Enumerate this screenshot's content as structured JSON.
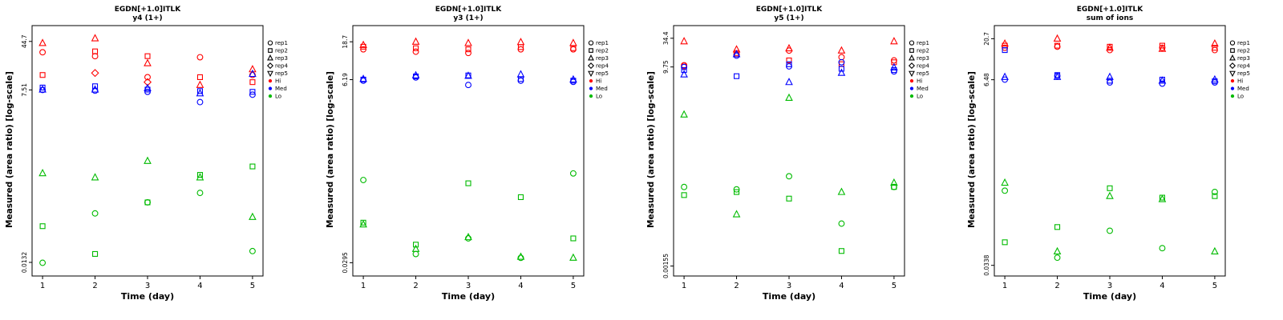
{
  "legend": {
    "reps": [
      {
        "label": "rep1",
        "marker": "circle"
      },
      {
        "label": "rep2",
        "marker": "square"
      },
      {
        "label": "rep3",
        "marker": "triangle-up"
      },
      {
        "label": "rep4",
        "marker": "diamond"
      },
      {
        "label": "rep5",
        "marker": "triangle-down"
      }
    ],
    "groups": [
      {
        "label": "Hi",
        "color": "#ff0000"
      },
      {
        "label": "Med",
        "color": "#0000ff"
      },
      {
        "label": "Lo",
        "color": "#00bb00"
      }
    ]
  },
  "chart_data": [
    {
      "type": "scatter",
      "title": "EGDN[+1.0]ITLK",
      "subtitle": "y4 (1+)",
      "xlabel": "Time (day)",
      "ylabel": "Measured (area ratio) [log-scale]",
      "x_ticks": [
        1,
        2,
        3,
        4,
        5
      ],
      "y_ticks": [
        "44.7",
        "7.51",
        "0.0132"
      ],
      "xlim": [
        0.8,
        5.2
      ],
      "ylim": [
        0.008,
        80
      ],
      "yscale": "log",
      "points": [
        [
          1,
          30,
          "rep1",
          "Hi"
        ],
        [
          1,
          13,
          "rep2",
          "Hi"
        ],
        [
          1,
          42,
          "rep3",
          "Hi"
        ],
        [
          2,
          26,
          "rep1",
          "Hi"
        ],
        [
          2,
          31,
          "rep2",
          "Hi"
        ],
        [
          2,
          50,
          "rep3",
          "Hi"
        ],
        [
          2,
          14,
          "rep4",
          "Hi"
        ],
        [
          3,
          12,
          "rep1",
          "Hi"
        ],
        [
          3,
          26,
          "rep2",
          "Hi"
        ],
        [
          3,
          20,
          "rep3",
          "Hi"
        ],
        [
          3,
          10,
          "rep4",
          "Hi"
        ],
        [
          4,
          25,
          "rep1",
          "Hi"
        ],
        [
          4,
          12,
          "rep2",
          "Hi"
        ],
        [
          4,
          9,
          "rep3",
          "Hi"
        ],
        [
          5,
          13,
          "rep1",
          "Hi"
        ],
        [
          5,
          10,
          "rep2",
          "Hi"
        ],
        [
          5,
          16,
          "rep3",
          "Hi"
        ],
        [
          1,
          7.5,
          "rep1",
          "Med"
        ],
        [
          1,
          8.2,
          "rep2",
          "Med"
        ],
        [
          1,
          7.6,
          "rep3",
          "Med"
        ],
        [
          2,
          7.3,
          "rep1",
          "Med"
        ],
        [
          2,
          8.6,
          "rep2",
          "Med"
        ],
        [
          2,
          7.6,
          "rep3",
          "Med"
        ],
        [
          3,
          7.0,
          "rep1",
          "Med"
        ],
        [
          3,
          7.6,
          "rep2",
          "Med"
        ],
        [
          3,
          8.0,
          "rep3",
          "Med"
        ],
        [
          4,
          4.8,
          "rep1",
          "Med"
        ],
        [
          4,
          7.2,
          "rep2",
          "Med"
        ],
        [
          4,
          6.6,
          "rep3",
          "Med"
        ],
        [
          5,
          6.3,
          "rep1",
          "Med"
        ],
        [
          5,
          7.0,
          "rep2",
          "Med"
        ],
        [
          5,
          13.5,
          "rep3",
          "Med"
        ],
        [
          1,
          0.013,
          "rep1",
          "Lo"
        ],
        [
          1,
          0.05,
          "rep2",
          "Lo"
        ],
        [
          1,
          0.35,
          "rep3",
          "Lo"
        ],
        [
          2,
          0.08,
          "rep1",
          "Lo"
        ],
        [
          2,
          0.018,
          "rep2",
          "Lo"
        ],
        [
          2,
          0.3,
          "rep3",
          "Lo"
        ],
        [
          3,
          0.12,
          "rep1",
          "Lo"
        ],
        [
          3,
          0.12,
          "rep2",
          "Lo"
        ],
        [
          3,
          0.55,
          "rep3",
          "Lo"
        ],
        [
          4,
          0.17,
          "rep1",
          "Lo"
        ],
        [
          4,
          0.33,
          "rep2",
          "Lo"
        ],
        [
          4,
          0.3,
          "rep3",
          "Lo"
        ],
        [
          5,
          0.02,
          "rep1",
          "Lo"
        ],
        [
          5,
          0.45,
          "rep2",
          "Lo"
        ],
        [
          5,
          0.07,
          "rep3",
          "Lo"
        ]
      ]
    },
    {
      "type": "scatter",
      "title": "EGDN[+1.0]ITLK",
      "subtitle": "y3 (1+)",
      "xlabel": "Time (day)",
      "ylabel": "Measured (area ratio) [log-scale]",
      "x_ticks": [
        1,
        2,
        3,
        4,
        5
      ],
      "y_ticks": [
        "18.7",
        "6.19",
        "0.0295"
      ],
      "xlim": [
        0.8,
        5.2
      ],
      "ylim": [
        0.02,
        30
      ],
      "yscale": "log",
      "points": [
        [
          1,
          15,
          "rep1",
          "Hi"
        ],
        [
          1,
          16.2,
          "rep2",
          "Hi"
        ],
        [
          1,
          17,
          "rep3",
          "Hi"
        ],
        [
          2,
          14,
          "rep1",
          "Hi"
        ],
        [
          2,
          15.5,
          "rep2",
          "Hi"
        ],
        [
          2,
          18.7,
          "rep3",
          "Hi"
        ],
        [
          3,
          13.5,
          "rep1",
          "Hi"
        ],
        [
          3,
          15,
          "rep2",
          "Hi"
        ],
        [
          3,
          18,
          "rep3",
          "Hi"
        ],
        [
          4,
          15,
          "rep1",
          "Hi"
        ],
        [
          4,
          16,
          "rep2",
          "Hi"
        ],
        [
          4,
          18.5,
          "rep3",
          "Hi"
        ],
        [
          5,
          15,
          "rep1",
          "Hi"
        ],
        [
          5,
          15.5,
          "rep2",
          "Hi"
        ],
        [
          5,
          18,
          "rep3",
          "Hi"
        ],
        [
          1,
          6.0,
          "rep1",
          "Med"
        ],
        [
          1,
          6.2,
          "rep2",
          "Med"
        ],
        [
          1,
          6.3,
          "rep3",
          "Med"
        ],
        [
          2,
          6.6,
          "rep1",
          "Med"
        ],
        [
          2,
          6.8,
          "rep2",
          "Med"
        ],
        [
          2,
          7.0,
          "rep3",
          "Med"
        ],
        [
          3,
          5.3,
          "rep1",
          "Med"
        ],
        [
          3,
          7.0,
          "rep2",
          "Med"
        ],
        [
          3,
          6.9,
          "rep3",
          "Med"
        ],
        [
          4,
          6.0,
          "rep1",
          "Med"
        ],
        [
          4,
          6.3,
          "rep2",
          "Med"
        ],
        [
          4,
          7.2,
          "rep3",
          "Med"
        ],
        [
          5,
          5.8,
          "rep1",
          "Med"
        ],
        [
          5,
          6.0,
          "rep2",
          "Med"
        ],
        [
          5,
          6.2,
          "rep3",
          "Med"
        ],
        [
          1,
          0.33,
          "rep1",
          "Lo"
        ],
        [
          1,
          0.095,
          "rep2",
          "Lo"
        ],
        [
          1,
          0.09,
          "rep3",
          "Lo"
        ],
        [
          2,
          0.038,
          "rep1",
          "Lo"
        ],
        [
          2,
          0.05,
          "rep2",
          "Lo"
        ],
        [
          2,
          0.044,
          "rep3",
          "Lo"
        ],
        [
          3,
          0.06,
          "rep1",
          "Lo"
        ],
        [
          3,
          0.3,
          "rep2",
          "Lo"
        ],
        [
          3,
          0.062,
          "rep3",
          "Lo"
        ],
        [
          4,
          0.034,
          "rep1",
          "Lo"
        ],
        [
          4,
          0.2,
          "rep2",
          "Lo"
        ],
        [
          4,
          0.035,
          "rep3",
          "Lo"
        ],
        [
          5,
          0.4,
          "rep1",
          "Lo"
        ],
        [
          5,
          0.06,
          "rep2",
          "Lo"
        ],
        [
          5,
          0.034,
          "rep3",
          "Lo"
        ]
      ]
    },
    {
      "type": "scatter",
      "title": "EGDN[+1.0]ITLK",
      "subtitle": "y5 (1+)",
      "xlabel": "Time (day)",
      "ylabel": "Measured (area ratio) [log-scale]",
      "x_ticks": [
        1,
        2,
        3,
        4,
        5
      ],
      "y_ticks": [
        "34.4",
        "9.75",
        "0.00155"
      ],
      "xlim": [
        0.8,
        5.2
      ],
      "ylim": [
        0.001,
        60
      ],
      "yscale": "log",
      "points": [
        [
          1,
          10.5,
          "rep1",
          "Hi"
        ],
        [
          1,
          10,
          "rep2",
          "Hi"
        ],
        [
          1,
          30,
          "rep3",
          "Hi"
        ],
        [
          2,
          17,
          "rep1",
          "Hi"
        ],
        [
          2,
          18,
          "rep2",
          "Hi"
        ],
        [
          2,
          21,
          "rep3",
          "Hi"
        ],
        [
          3,
          20,
          "rep1",
          "Hi"
        ],
        [
          3,
          13,
          "rep2",
          "Hi"
        ],
        [
          3,
          22,
          "rep3",
          "Hi"
        ],
        [
          4,
          15,
          "rep1",
          "Hi"
        ],
        [
          4,
          11,
          "rep2",
          "Hi"
        ],
        [
          4,
          20,
          "rep3",
          "Hi"
        ],
        [
          5,
          13,
          "rep1",
          "Hi"
        ],
        [
          5,
          12,
          "rep2",
          "Hi"
        ],
        [
          5,
          30,
          "rep3",
          "Hi"
        ],
        [
          1,
          9.75,
          "rep1",
          "Med"
        ],
        [
          1,
          8.5,
          "rep2",
          "Med"
        ],
        [
          1,
          7,
          "rep3",
          "Med"
        ],
        [
          2,
          16,
          "rep1",
          "Med"
        ],
        [
          2,
          6.5,
          "rep2",
          "Med"
        ],
        [
          2,
          17,
          "rep3",
          "Med"
        ],
        [
          3,
          10,
          "rep1",
          "Med"
        ],
        [
          3,
          11,
          "rep2",
          "Med"
        ],
        [
          3,
          5,
          "rep3",
          "Med"
        ],
        [
          4,
          12,
          "rep1",
          "Med"
        ],
        [
          4,
          9,
          "rep2",
          "Med"
        ],
        [
          4,
          7.5,
          "rep3",
          "Med"
        ],
        [
          5,
          8,
          "rep1",
          "Med"
        ],
        [
          5,
          8.5,
          "rep2",
          "Med"
        ],
        [
          5,
          9.5,
          "rep3",
          "Med"
        ],
        [
          1,
          0.05,
          "rep1",
          "Lo"
        ],
        [
          1,
          0.035,
          "rep2",
          "Lo"
        ],
        [
          1,
          1.2,
          "rep3",
          "Lo"
        ],
        [
          2,
          0.045,
          "rep1",
          "Lo"
        ],
        [
          2,
          0.04,
          "rep2",
          "Lo"
        ],
        [
          2,
          0.015,
          "rep3",
          "Lo"
        ],
        [
          3,
          0.08,
          "rep1",
          "Lo"
        ],
        [
          3,
          0.03,
          "rep2",
          "Lo"
        ],
        [
          3,
          2.5,
          "rep3",
          "Lo"
        ],
        [
          4,
          0.01,
          "rep1",
          "Lo"
        ],
        [
          4,
          0.003,
          "rep2",
          "Lo"
        ],
        [
          4,
          0.04,
          "rep3",
          "Lo"
        ],
        [
          5,
          0.05,
          "rep1",
          "Lo"
        ],
        [
          5,
          0.05,
          "rep2",
          "Lo"
        ],
        [
          5,
          0.06,
          "rep3",
          "Lo"
        ]
      ]
    },
    {
      "type": "scatter",
      "title": "EGDN[+1.0]ITLK",
      "subtitle": "sum of ions",
      "xlabel": "Time (day)",
      "ylabel": "Measured (area ratio) [log-scale]",
      "x_ticks": [
        1,
        2,
        3,
        4,
        5
      ],
      "y_ticks": [
        "20.7",
        "6.48",
        "0.0338"
      ],
      "xlim": [
        0.8,
        5.2
      ],
      "ylim": [
        0.025,
        30
      ],
      "yscale": "log",
      "points": [
        [
          1,
          16,
          "rep1",
          "Hi"
        ],
        [
          1,
          17,
          "rep2",
          "Hi"
        ],
        [
          1,
          18,
          "rep3",
          "Hi"
        ],
        [
          2,
          16.5,
          "rep1",
          "Hi"
        ],
        [
          2,
          17,
          "rep2",
          "Hi"
        ],
        [
          2,
          20.7,
          "rep3",
          "Hi"
        ],
        [
          3,
          15,
          "rep1",
          "Hi"
        ],
        [
          3,
          16.5,
          "rep2",
          "Hi"
        ],
        [
          3,
          16,
          "rep3",
          "Hi"
        ],
        [
          4,
          16,
          "rep1",
          "Hi"
        ],
        [
          4,
          17,
          "rep2",
          "Hi"
        ],
        [
          4,
          15.5,
          "rep3",
          "Hi"
        ],
        [
          5,
          15,
          "rep1",
          "Hi"
        ],
        [
          5,
          16,
          "rep2",
          "Hi"
        ],
        [
          5,
          18,
          "rep3",
          "Hi"
        ],
        [
          1,
          6.5,
          "rep1",
          "Med"
        ],
        [
          1,
          15,
          "rep2",
          "Med"
        ],
        [
          1,
          7,
          "rep3",
          "Med"
        ],
        [
          2,
          7.2,
          "rep1",
          "Med"
        ],
        [
          2,
          7.4,
          "rep2",
          "Med"
        ],
        [
          2,
          7.0,
          "rep3",
          "Med"
        ],
        [
          3,
          6.0,
          "rep1",
          "Med"
        ],
        [
          3,
          6.3,
          "rep2",
          "Med"
        ],
        [
          3,
          7.0,
          "rep3",
          "Med"
        ],
        [
          4,
          5.8,
          "rep1",
          "Med"
        ],
        [
          4,
          6.5,
          "rep2",
          "Med"
        ],
        [
          4,
          6.3,
          "rep3",
          "Med"
        ],
        [
          5,
          6.0,
          "rep1",
          "Med"
        ],
        [
          5,
          6.2,
          "rep2",
          "Med"
        ],
        [
          5,
          6.5,
          "rep3",
          "Med"
        ],
        [
          1,
          0.28,
          "rep1",
          "Lo"
        ],
        [
          1,
          0.065,
          "rep2",
          "Lo"
        ],
        [
          1,
          0.35,
          "rep3",
          "Lo"
        ],
        [
          2,
          0.042,
          "rep1",
          "Lo"
        ],
        [
          2,
          0.1,
          "rep2",
          "Lo"
        ],
        [
          2,
          0.05,
          "rep3",
          "Lo"
        ],
        [
          3,
          0.09,
          "rep1",
          "Lo"
        ],
        [
          3,
          0.3,
          "rep2",
          "Lo"
        ],
        [
          3,
          0.24,
          "rep3",
          "Lo"
        ],
        [
          4,
          0.055,
          "rep1",
          "Lo"
        ],
        [
          4,
          0.23,
          "rep2",
          "Lo"
        ],
        [
          4,
          0.22,
          "rep3",
          "Lo"
        ],
        [
          5,
          0.27,
          "rep1",
          "Lo"
        ],
        [
          5,
          0.24,
          "rep2",
          "Lo"
        ],
        [
          5,
          0.05,
          "rep3",
          "Lo"
        ]
      ]
    }
  ]
}
